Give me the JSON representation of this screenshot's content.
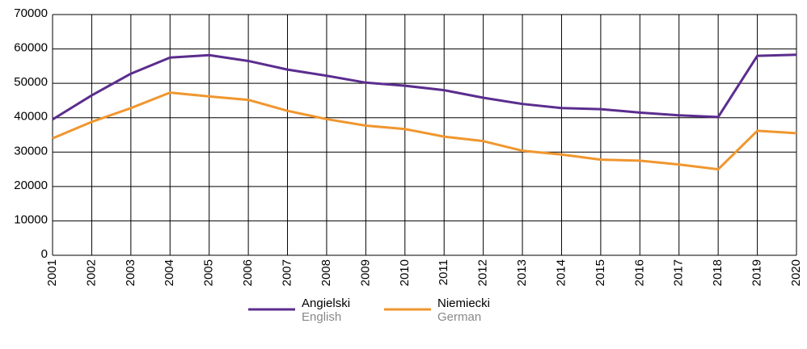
{
  "chart_data": {
    "type": "line",
    "x": [
      2001,
      2002,
      2003,
      2004,
      2005,
      2006,
      2007,
      2008,
      2009,
      2010,
      2011,
      2012,
      2013,
      2014,
      2015,
      2016,
      2017,
      2018,
      2019,
      2020
    ],
    "series": [
      {
        "name": "Angielski",
        "name_en": "English",
        "color": "#5b2d8e",
        "values": [
          39500,
          46500,
          52800,
          57500,
          58200,
          56500,
          54000,
          52200,
          50200,
          49300,
          48000,
          45800,
          44000,
          42800,
          42500,
          41500,
          40700,
          40200,
          58000,
          58300
        ]
      },
      {
        "name": "Niemiecki",
        "name_en": "German",
        "color": "#f0962e",
        "values": [
          34000,
          38800,
          42800,
          47300,
          46200,
          45200,
          42000,
          39600,
          37700,
          36700,
          34500,
          33200,
          30400,
          29300,
          27800,
          27500,
          26400,
          25000,
          36200,
          35500
        ]
      }
    ],
    "xlim": [
      2001,
      2020
    ],
    "xticks": [
      2001,
      2002,
      2003,
      2004,
      2005,
      2006,
      2007,
      2008,
      2009,
      2010,
      2011,
      2012,
      2013,
      2014,
      2015,
      2016,
      2017,
      2018,
      2019,
      2020
    ],
    "ylim": [
      0,
      70000
    ],
    "yticks": [
      0,
      10000,
      20000,
      30000,
      40000,
      50000,
      60000,
      70000
    ],
    "grid": true,
    "legend": "bottom"
  }
}
